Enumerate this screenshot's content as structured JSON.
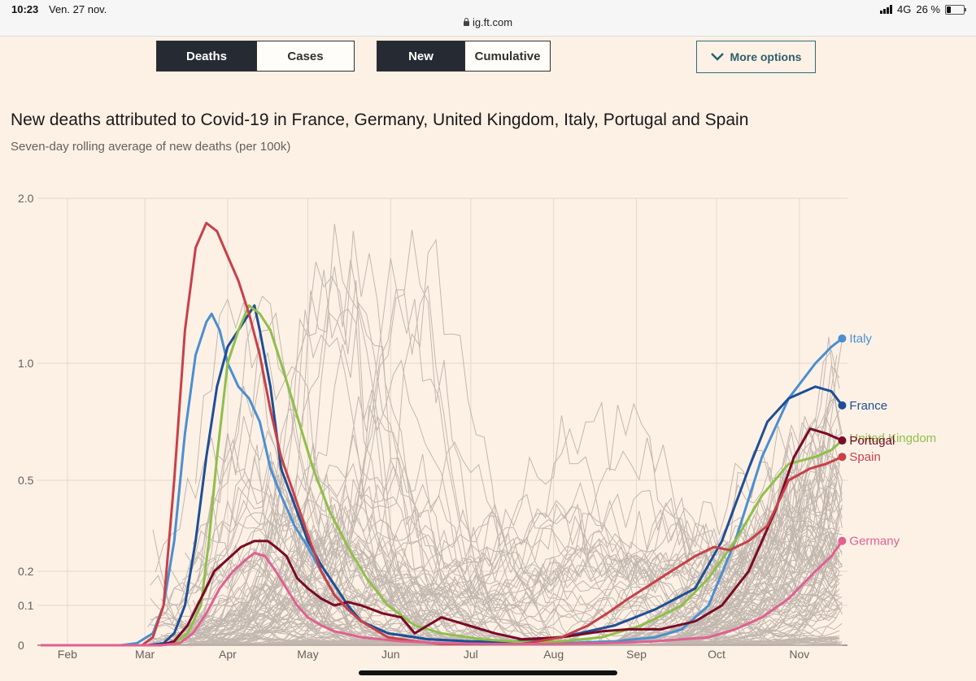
{
  "status": {
    "time": "10:23",
    "date": "Ven. 27 nov.",
    "network": "4G",
    "battery": "26 %",
    "battery_level": 0.26,
    "url": "ig.ft.com"
  },
  "controls": {
    "metric": [
      "Deaths",
      "Cases"
    ],
    "metric_selected": "Deaths",
    "mode": [
      "New",
      "Cumulative"
    ],
    "mode_selected": "New",
    "more_options": "More options"
  },
  "chart_data": {
    "type": "line",
    "title": "New deaths attributed to Covid-19 in France, Germany, United Kingdom, Italy, Portugal and Spain",
    "subtitle": "Seven-day rolling average of new deaths (per 100k)",
    "xlabel": "",
    "ylabel": "",
    "x_ticks": [
      "Feb",
      "Mar",
      "Apr",
      "May",
      "Jun",
      "Jul",
      "Aug",
      "Sep",
      "Oct",
      "Nov"
    ],
    "y_ticks": [
      0,
      0.1,
      0.2,
      0.5,
      1.0,
      2.0
    ],
    "y_tick_labels": [
      "0",
      "0.1",
      "0.2",
      "0.5",
      "1.0",
      "2.0"
    ],
    "y_scale": "log-like",
    "x_range_days": [
      0,
      302
    ],
    "note_x": "x values are days since Jan 22",
    "series": [
      {
        "name": "Italy",
        "color": "#4a8fd0",
        "label_y": 1.15,
        "points": [
          [
            0,
            0
          ],
          [
            30,
            0
          ],
          [
            36,
            0.005
          ],
          [
            42,
            0.03
          ],
          [
            46,
            0.1
          ],
          [
            50,
            0.3
          ],
          [
            54,
            0.7
          ],
          [
            58,
            1.05
          ],
          [
            62,
            1.25
          ],
          [
            64,
            1.3
          ],
          [
            67,
            1.2
          ],
          [
            70,
            1.0
          ],
          [
            74,
            0.9
          ],
          [
            78,
            0.85
          ],
          [
            82,
            0.75
          ],
          [
            86,
            0.55
          ],
          [
            90,
            0.45
          ],
          [
            95,
            0.35
          ],
          [
            100,
            0.28
          ],
          [
            105,
            0.2
          ],
          [
            110,
            0.13
          ],
          [
            115,
            0.09
          ],
          [
            120,
            0.06
          ],
          [
            130,
            0.03
          ],
          [
            145,
            0.015
          ],
          [
            160,
            0.01
          ],
          [
            175,
            0.005
          ],
          [
            195,
            0.005
          ],
          [
            215,
            0.01
          ],
          [
            230,
            0.02
          ],
          [
            240,
            0.04
          ],
          [
            250,
            0.1
          ],
          [
            260,
            0.3
          ],
          [
            270,
            0.6
          ],
          [
            280,
            0.85
          ],
          [
            290,
            1.0
          ],
          [
            296,
            1.1
          ],
          [
            300,
            1.15
          ]
        ]
      },
      {
        "name": "France",
        "color": "#1e4e96",
        "label_y": 0.82,
        "points": [
          [
            0,
            0
          ],
          [
            40,
            0
          ],
          [
            46,
            0.005
          ],
          [
            50,
            0.03
          ],
          [
            54,
            0.1
          ],
          [
            58,
            0.3
          ],
          [
            62,
            0.6
          ],
          [
            66,
            0.9
          ],
          [
            70,
            1.1
          ],
          [
            74,
            1.2
          ],
          [
            78,
            1.3
          ],
          [
            80,
            1.35
          ],
          [
            82,
            1.2
          ],
          [
            86,
            0.9
          ],
          [
            90,
            0.55
          ],
          [
            95,
            0.42
          ],
          [
            100,
            0.3
          ],
          [
            105,
            0.22
          ],
          [
            110,
            0.16
          ],
          [
            115,
            0.1
          ],
          [
            120,
            0.06
          ],
          [
            130,
            0.03
          ],
          [
            145,
            0.015
          ],
          [
            160,
            0.01
          ],
          [
            175,
            0.008
          ],
          [
            195,
            0.02
          ],
          [
            215,
            0.05
          ],
          [
            230,
            0.09
          ],
          [
            245,
            0.15
          ],
          [
            255,
            0.3
          ],
          [
            265,
            0.55
          ],
          [
            272,
            0.75
          ],
          [
            280,
            0.85
          ],
          [
            290,
            0.9
          ],
          [
            296,
            0.88
          ],
          [
            300,
            0.82
          ]
        ]
      },
      {
        "name": "United Kingdom",
        "color": "#8fbf4a",
        "label_y": 0.68,
        "points": [
          [
            0,
            0
          ],
          [
            45,
            0
          ],
          [
            50,
            0.005
          ],
          [
            55,
            0.03
          ],
          [
            60,
            0.1
          ],
          [
            63,
            0.3
          ],
          [
            66,
            0.6
          ],
          [
            70,
            1.0
          ],
          [
            74,
            1.2
          ],
          [
            78,
            1.35
          ],
          [
            82,
            1.3
          ],
          [
            86,
            1.2
          ],
          [
            90,
            1.0
          ],
          [
            94,
            0.85
          ],
          [
            98,
            0.7
          ],
          [
            102,
            0.55
          ],
          [
            108,
            0.4
          ],
          [
            115,
            0.28
          ],
          [
            122,
            0.18
          ],
          [
            130,
            0.1
          ],
          [
            140,
            0.05
          ],
          [
            150,
            0.03
          ],
          [
            165,
            0.015
          ],
          [
            180,
            0.008
          ],
          [
            195,
            0.01
          ],
          [
            210,
            0.02
          ],
          [
            225,
            0.05
          ],
          [
            240,
            0.1
          ],
          [
            250,
            0.18
          ],
          [
            260,
            0.3
          ],
          [
            270,
            0.45
          ],
          [
            280,
            0.57
          ],
          [
            290,
            0.6
          ],
          [
            296,
            0.63
          ],
          [
            300,
            0.67
          ]
        ]
      },
      {
        "name": "Portugal",
        "color": "#7a0a27",
        "label_y": 0.67,
        "points": [
          [
            0,
            0
          ],
          [
            45,
            0
          ],
          [
            50,
            0.01
          ],
          [
            55,
            0.05
          ],
          [
            60,
            0.12
          ],
          [
            65,
            0.2
          ],
          [
            70,
            0.24
          ],
          [
            75,
            0.28
          ],
          [
            80,
            0.3
          ],
          [
            85,
            0.3
          ],
          [
            88,
            0.28
          ],
          [
            92,
            0.25
          ],
          [
            96,
            0.18
          ],
          [
            100,
            0.15
          ],
          [
            105,
            0.12
          ],
          [
            110,
            0.1
          ],
          [
            115,
            0.11
          ],
          [
            120,
            0.1
          ],
          [
            128,
            0.08
          ],
          [
            135,
            0.07
          ],
          [
            140,
            0.03
          ],
          [
            145,
            0.05
          ],
          [
            150,
            0.07
          ],
          [
            155,
            0.06
          ],
          [
            160,
            0.05
          ],
          [
            170,
            0.03
          ],
          [
            180,
            0.015
          ],
          [
            195,
            0.02
          ],
          [
            210,
            0.035
          ],
          [
            220,
            0.04
          ],
          [
            232,
            0.04
          ],
          [
            245,
            0.06
          ],
          [
            255,
            0.1
          ],
          [
            265,
            0.2
          ],
          [
            275,
            0.4
          ],
          [
            282,
            0.6
          ],
          [
            288,
            0.72
          ],
          [
            294,
            0.7
          ],
          [
            300,
            0.67
          ]
        ]
      },
      {
        "name": "Spain",
        "color": "#c84048",
        "label_y": 0.6,
        "points": [
          [
            0,
            0
          ],
          [
            38,
            0
          ],
          [
            42,
            0.02
          ],
          [
            46,
            0.1
          ],
          [
            50,
            0.5
          ],
          [
            54,
            1.2
          ],
          [
            58,
            1.7
          ],
          [
            62,
            1.85
          ],
          [
            66,
            1.8
          ],
          [
            70,
            1.65
          ],
          [
            74,
            1.5
          ],
          [
            78,
            1.3
          ],
          [
            82,
            1.05
          ],
          [
            86,
            0.8
          ],
          [
            90,
            0.6
          ],
          [
            95,
            0.45
          ],
          [
            100,
            0.32
          ],
          [
            105,
            0.2
          ],
          [
            110,
            0.13
          ],
          [
            115,
            0.09
          ],
          [
            120,
            0.06
          ],
          [
            130,
            0.02
          ],
          [
            140,
            0.01
          ],
          [
            150,
            0.003
          ],
          [
            165,
            0.003
          ],
          [
            180,
            0.003
          ],
          [
            195,
            0.02
          ],
          [
            205,
            0.05
          ],
          [
            212,
            0.08
          ],
          [
            220,
            0.12
          ],
          [
            228,
            0.16
          ],
          [
            236,
            0.2
          ],
          [
            245,
            0.25
          ],
          [
            252,
            0.28
          ],
          [
            258,
            0.27
          ],
          [
            265,
            0.3
          ],
          [
            272,
            0.35
          ],
          [
            280,
            0.5
          ],
          [
            288,
            0.55
          ],
          [
            294,
            0.57
          ],
          [
            300,
            0.6
          ]
        ]
      },
      {
        "name": "Germany",
        "color": "#e06090",
        "label_y": 0.3,
        "points": [
          [
            0,
            0
          ],
          [
            45,
            0
          ],
          [
            52,
            0.005
          ],
          [
            57,
            0.03
          ],
          [
            62,
            0.08
          ],
          [
            67,
            0.15
          ],
          [
            72,
            0.2
          ],
          [
            77,
            0.24
          ],
          [
            80,
            0.26
          ],
          [
            84,
            0.25
          ],
          [
            88,
            0.2
          ],
          [
            92,
            0.15
          ],
          [
            96,
            0.1
          ],
          [
            100,
            0.07
          ],
          [
            105,
            0.05
          ],
          [
            110,
            0.035
          ],
          [
            120,
            0.02
          ],
          [
            135,
            0.01
          ],
          [
            150,
            0.005
          ],
          [
            170,
            0.003
          ],
          [
            190,
            0.003
          ],
          [
            210,
            0.005
          ],
          [
            230,
            0.01
          ],
          [
            250,
            0.02
          ],
          [
            260,
            0.04
          ],
          [
            270,
            0.07
          ],
          [
            280,
            0.12
          ],
          [
            290,
            0.2
          ],
          [
            296,
            0.25
          ],
          [
            300,
            0.3
          ]
        ]
      }
    ]
  }
}
